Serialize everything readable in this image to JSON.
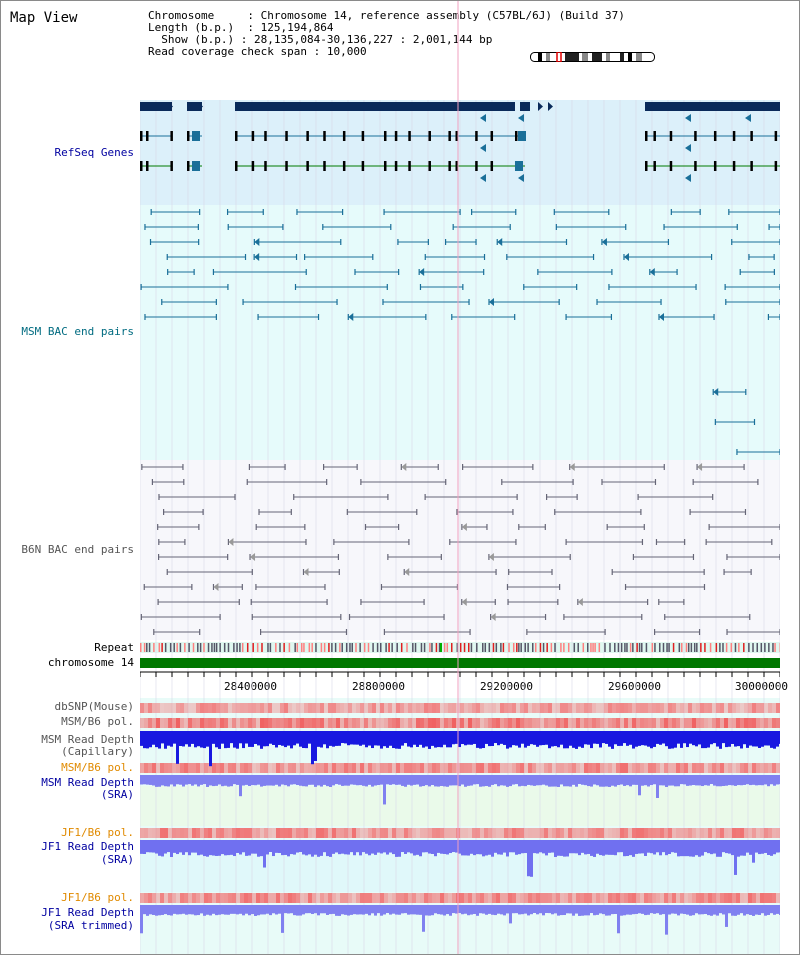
{
  "header": {
    "title": "Map View",
    "chromosome_label": "Chromosome",
    "chromosome_value": "Chromosome 14, reference assembly (C57BL/6J) (Build 37)",
    "length_label": "Length (b.p.)",
    "length_value": "125,194,864",
    "show_label": "Show (b.p.)",
    "show_value": "28,135,084-30,136,227 : 2,001,144 bp",
    "coverage_label": "Read coverage check span",
    "coverage_value": "10,000"
  },
  "tracks": {
    "refseq": "RefSeq Genes",
    "msm_bac": "MSM BAC end pairs",
    "b6n_bac": "B6N BAC end pairs",
    "repeat": "Repeat",
    "chromosome": "chromosome 14",
    "dbsnp": "dbSNP(Mouse)",
    "msm_b6_pol_1": "MSM/B6 pol.",
    "msm_read_depth_cap_1": "MSM Read Depth",
    "msm_read_depth_cap_2": "(Capillary)",
    "msm_b6_pol_2": "MSM/B6 pol.",
    "msm_read_depth_sra_1": "MSM Read Depth",
    "msm_read_depth_sra_2": "(SRA)",
    "jf1_b6_pol_1": "JF1/B6 pol.",
    "jf1_read_depth_sra_1": "JF1 Read Depth",
    "jf1_read_depth_sra_2": "(SRA)",
    "jf1_b6_pol_2": "JF1/B6 pol.",
    "jf1_read_depth_trim_1": "JF1 Read Depth",
    "jf1_read_depth_trim_2": "(SRA trimmed)"
  },
  "axis": {
    "ticks": [
      "28400000",
      "28800000",
      "29200000",
      "29600000",
      "30000000"
    ]
  },
  "colors": {
    "refseq_bg": "#dcf0fa",
    "msm_bg": "#e6fbfb",
    "b6n_bg": "#f7f7fb",
    "gene_navy": "#0a2a5a",
    "gene_teal": "#1a6f99",
    "gene_green": "#007a00",
    "chromosome_green": "#007700",
    "depth_blue": "#1a1ae6",
    "depth_light": "#8080f0"
  }
}
